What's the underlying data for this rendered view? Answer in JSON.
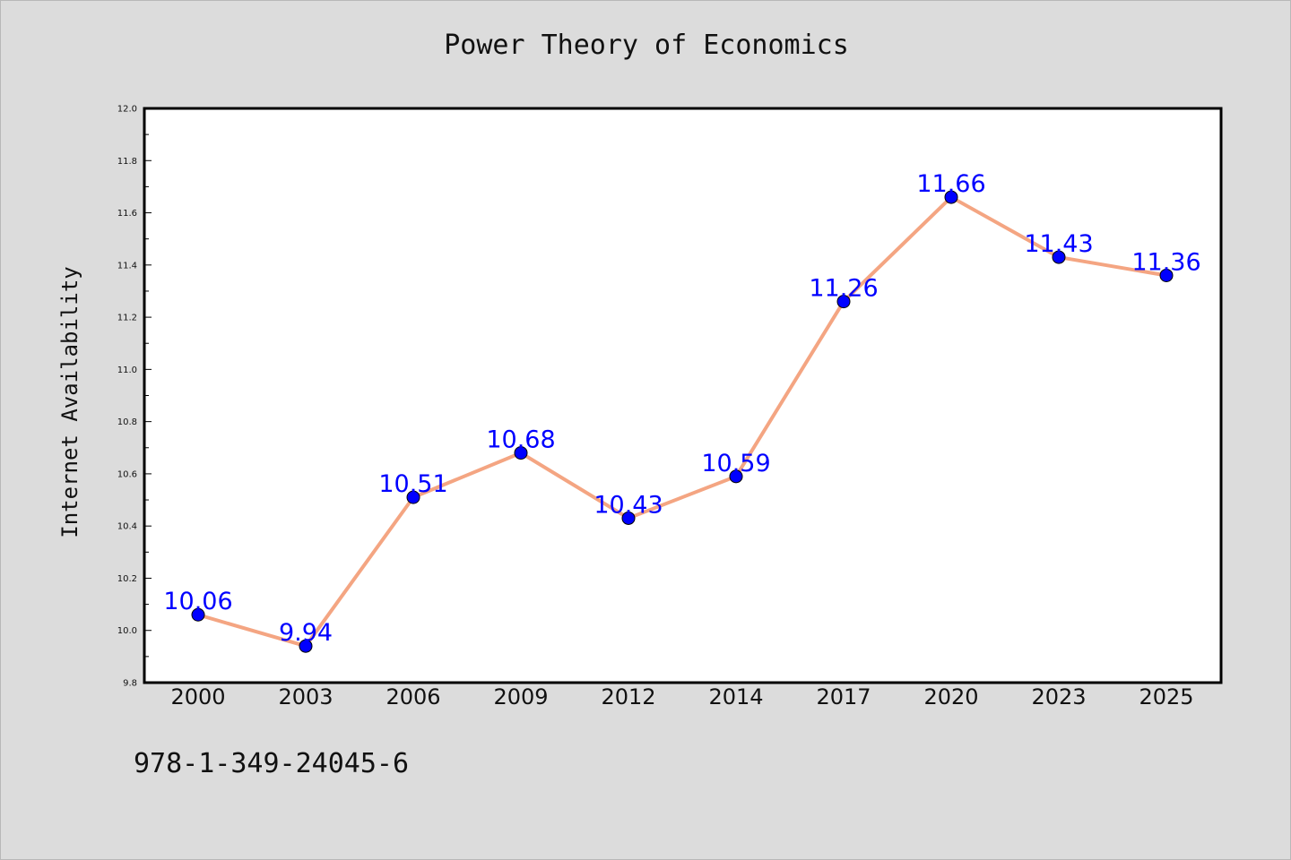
{
  "chart_data": {
    "type": "line",
    "title": "Power Theory of Economics",
    "xlabel": "",
    "ylabel": "Internet Availability",
    "categories": [
      "2000",
      "2003",
      "2006",
      "2009",
      "2012",
      "2014",
      "2017",
      "2020",
      "2023",
      "2025"
    ],
    "series": [
      {
        "values": [
          10.06,
          9.94,
          10.51,
          10.68,
          10.43,
          10.59,
          11.26,
          11.66,
          11.43,
          11.36
        ],
        "labels": [
          "10.06",
          "9.94",
          "10.51",
          "10.68",
          "10.43",
          "10.59",
          "11.26",
          "11.66",
          "11.43",
          "11.36"
        ],
        "line_color": "#f4a582",
        "marker_color": "#0000ff"
      }
    ],
    "yticks": [
      "9.8",
      "10.0",
      "10.2",
      "10.4",
      "10.6",
      "10.8",
      "11.0",
      "11.2",
      "11.4",
      "11.6",
      "11.8",
      "12.0"
    ],
    "ylim": [
      9.8,
      12.0
    ],
    "grid": false,
    "legend": "none"
  },
  "footer": {
    "isbn": "978-1-349-24045-6"
  },
  "colors": {
    "background": "#dcdcdc",
    "plot_area": "#ffffff",
    "line": "#f4a582",
    "markers": "#0000ff",
    "labels": "#0000ff"
  }
}
